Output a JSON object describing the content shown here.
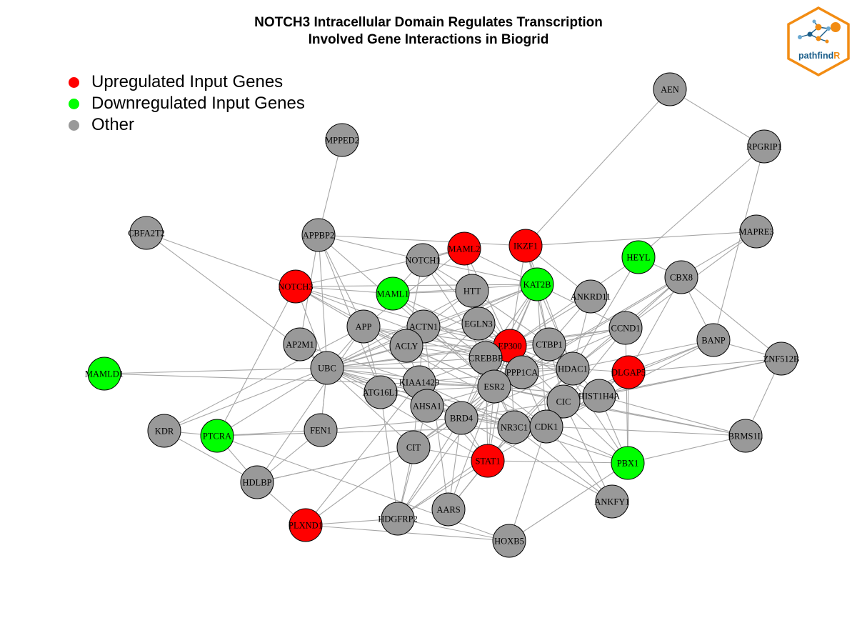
{
  "title": {
    "line1": "NOTCH3 Intracellular Domain Regulates Transcription",
    "line2": "Involved Gene Interactions in Biogrid"
  },
  "legend": [
    {
      "label": "Upregulated Input Genes",
      "color": "#ff0000"
    },
    {
      "label": "Downregulated Input Genes",
      "color": "#00ff00"
    },
    {
      "label": "Other",
      "color": "#999999"
    }
  ],
  "logo": {
    "text_main": "pathfind",
    "text_accent": "R",
    "accent_color": "#f28c13",
    "border_color": "#f28c13",
    "text_color": "#1b5e8a"
  },
  "colors": {
    "up": "#ff0000",
    "down": "#00ff00",
    "other": "#999999",
    "edge": "#a6a6a6"
  },
  "nodes": [
    {
      "id": "AEN",
      "status": "other"
    },
    {
      "id": "RPGRIP1",
      "status": "other"
    },
    {
      "id": "MPPED2",
      "status": "other"
    },
    {
      "id": "CBFA2T2",
      "status": "other"
    },
    {
      "id": "APPBP2",
      "status": "other"
    },
    {
      "id": "MAML2",
      "status": "up"
    },
    {
      "id": "IKZF1",
      "status": "up"
    },
    {
      "id": "HEYL",
      "status": "down"
    },
    {
      "id": "MAPRE3",
      "status": "other"
    },
    {
      "id": "NOTCH1",
      "status": "other"
    },
    {
      "id": "CBX8",
      "status": "other"
    },
    {
      "id": "NOTCH3",
      "status": "up"
    },
    {
      "id": "MAML1",
      "status": "down"
    },
    {
      "id": "HTT",
      "status": "other"
    },
    {
      "id": "KAT2B",
      "status": "down"
    },
    {
      "id": "ANKRD11",
      "status": "other"
    },
    {
      "id": "APP",
      "status": "other"
    },
    {
      "id": "ACTN1",
      "status": "other"
    },
    {
      "id": "EGLN3",
      "status": "other"
    },
    {
      "id": "CCND1",
      "status": "other"
    },
    {
      "id": "AP2M1",
      "status": "other"
    },
    {
      "id": "ACLY",
      "status": "other"
    },
    {
      "id": "EP300",
      "status": "up"
    },
    {
      "id": "CTBP1",
      "status": "other"
    },
    {
      "id": "BANP",
      "status": "other"
    },
    {
      "id": "UBC",
      "status": "other"
    },
    {
      "id": "CREBBP",
      "status": "other"
    },
    {
      "id": "HDAC1",
      "status": "other"
    },
    {
      "id": "DLGAP5",
      "status": "up"
    },
    {
      "id": "ZNF512B",
      "status": "other"
    },
    {
      "id": "MAMLD1",
      "status": "down"
    },
    {
      "id": "PPP1CA",
      "status": "other"
    },
    {
      "id": "KIAA1429",
      "status": "other"
    },
    {
      "id": "ATG16L1",
      "status": "other"
    },
    {
      "id": "ESR2",
      "status": "other"
    },
    {
      "id": "HIST1H4A",
      "status": "other"
    },
    {
      "id": "CIC",
      "status": "other"
    },
    {
      "id": "AHSA1",
      "status": "other"
    },
    {
      "id": "KDR",
      "status": "other"
    },
    {
      "id": "PTCRA",
      "status": "down"
    },
    {
      "id": "FEN1",
      "status": "other"
    },
    {
      "id": "BRD4",
      "status": "other"
    },
    {
      "id": "NR3C1",
      "status": "other"
    },
    {
      "id": "CDK1",
      "status": "other"
    },
    {
      "id": "BRMS1L",
      "status": "other"
    },
    {
      "id": "CIT",
      "status": "other"
    },
    {
      "id": "STAT1",
      "status": "up"
    },
    {
      "id": "PBX1",
      "status": "down"
    },
    {
      "id": "HDLBP",
      "status": "other"
    },
    {
      "id": "ANKFY1",
      "status": "other"
    },
    {
      "id": "AARS",
      "status": "other"
    },
    {
      "id": "PLXND1",
      "status": "up"
    },
    {
      "id": "HDGFRP2",
      "status": "other"
    },
    {
      "id": "HOXB5",
      "status": "other"
    }
  ],
  "edges": [
    [
      "AEN",
      "RPGRIP1"
    ],
    [
      "AEN",
      "IKZF1"
    ],
    [
      "RPGRIP1",
      "HEYL"
    ],
    [
      "RPGRIP1",
      "BANP"
    ],
    [
      "MPPED2",
      "APPBP2"
    ],
    [
      "CBFA2T2",
      "NOTCH3"
    ],
    [
      "CBFA2T2",
      "UBC"
    ],
    [
      "APPBP2",
      "IKZF1"
    ],
    [
      "APPBP2",
      "APP"
    ],
    [
      "APPBP2",
      "AP2M1"
    ],
    [
      "APPBP2",
      "UBC"
    ],
    [
      "APPBP2",
      "ACTN1"
    ],
    [
      "APPBP2",
      "ATG16L1"
    ],
    [
      "APPBP2",
      "NOTCH1"
    ],
    [
      "IKZF1",
      "MAPRE3"
    ],
    [
      "IKZF1",
      "KAT2B"
    ],
    [
      "IKZF1",
      "CTBP1"
    ],
    [
      "IKZF1",
      "HDAC1"
    ],
    [
      "IKZF1",
      "EP300"
    ],
    [
      "IKZF1",
      "ANKRD11"
    ],
    [
      "MAML2",
      "NOTCH1"
    ],
    [
      "MAML2",
      "NOTCH3"
    ],
    [
      "MAML2",
      "EP300"
    ],
    [
      "MAML2",
      "KAT2B"
    ],
    [
      "MAML2",
      "CREBBP"
    ],
    [
      "MAML2",
      "APP"
    ],
    [
      "NOTCH1",
      "MAML1"
    ],
    [
      "NOTCH1",
      "EP300"
    ],
    [
      "NOTCH1",
      "CREBBP"
    ],
    [
      "NOTCH1",
      "HTT"
    ],
    [
      "NOTCH1",
      "KAT2B"
    ],
    [
      "NOTCH1",
      "ACLY"
    ],
    [
      "NOTCH1",
      "MAML2"
    ],
    [
      "NOTCH3",
      "MAML1"
    ],
    [
      "NOTCH3",
      "EP300"
    ],
    [
      "NOTCH3",
      "APP"
    ],
    [
      "NOTCH3",
      "UBC"
    ],
    [
      "NOTCH3",
      "KAT2B"
    ],
    [
      "NOTCH3",
      "CREBBP"
    ],
    [
      "NOTCH3",
      "ACLY"
    ],
    [
      "MAML1",
      "EP300"
    ],
    [
      "MAML1",
      "KAT2B"
    ],
    [
      "MAML1",
      "CREBBP"
    ],
    [
      "MAML1",
      "HTT"
    ],
    [
      "MAML1",
      "ESR2"
    ],
    [
      "HEYL",
      "CBX8"
    ],
    [
      "HEYL",
      "HDAC1"
    ],
    [
      "HEYL",
      "EP300"
    ],
    [
      "CBX8",
      "BANP"
    ],
    [
      "CBX8",
      "ZNF512B"
    ],
    [
      "CBX8",
      "CCND1"
    ],
    [
      "CBX8",
      "HDAC1"
    ],
    [
      "CBX8",
      "DLGAP5"
    ],
    [
      "CBX8",
      "PPP1CA"
    ],
    [
      "MAPRE3",
      "CCND1"
    ],
    [
      "MAPRE3",
      "ESR2"
    ],
    [
      "KAT2B",
      "EP300"
    ],
    [
      "KAT2B",
      "CREBBP"
    ],
    [
      "KAT2B",
      "HDAC1"
    ],
    [
      "KAT2B",
      "CTBP1"
    ],
    [
      "KAT2B",
      "CCND1"
    ],
    [
      "KAT2B",
      "ESR2"
    ],
    [
      "KAT2B",
      "ACTN1"
    ],
    [
      "KAT2B",
      "ACLY"
    ],
    [
      "KAT2B",
      "UBC"
    ],
    [
      "KAT2B",
      "CDK1"
    ],
    [
      "KAT2B",
      "BRD4"
    ],
    [
      "ANKRD11",
      "HDAC1"
    ],
    [
      "ANKRD11",
      "EP300"
    ],
    [
      "ANKRD11",
      "CTBP1"
    ],
    [
      "HTT",
      "EP300"
    ],
    [
      "HTT",
      "CREBBP"
    ],
    [
      "HTT",
      "ACTN1"
    ],
    [
      "HTT",
      "UBC"
    ],
    [
      "HTT",
      "CTBP1"
    ],
    [
      "HTT",
      "ESR2"
    ],
    [
      "APP",
      "UBC"
    ],
    [
      "APP",
      "ACLY"
    ],
    [
      "APP",
      "KIAA1429"
    ],
    [
      "APP",
      "ATG16L1"
    ],
    [
      "APP",
      "EP300"
    ],
    [
      "APP",
      "CREBBP"
    ],
    [
      "APP",
      "ESR2"
    ],
    [
      "APP",
      "HDAC1"
    ],
    [
      "APP",
      "CDK1"
    ],
    [
      "ACTN1",
      "UBC"
    ],
    [
      "ACTN1",
      "ESR2"
    ],
    [
      "ACTN1",
      "EP300"
    ],
    [
      "ACTN1",
      "KIAA1429"
    ],
    [
      "ACTN1",
      "CTBP1"
    ],
    [
      "EGLN3",
      "EP300"
    ],
    [
      "EGLN3",
      "UBC"
    ],
    [
      "EGLN3",
      "KIAA1429"
    ],
    [
      "CCND1",
      "HDAC1"
    ],
    [
      "CCND1",
      "EP300"
    ],
    [
      "CCND1",
      "ESR2"
    ],
    [
      "CCND1",
      "CDK1"
    ],
    [
      "CCND1",
      "CREBBP"
    ],
    [
      "CCND1",
      "UBC"
    ],
    [
      "CCND1",
      "PBX1"
    ],
    [
      "AP2M1",
      "UBC"
    ],
    [
      "AP2M1",
      "KIAA1429"
    ],
    [
      "ACLY",
      "UBC"
    ],
    [
      "ACLY",
      "EP300"
    ],
    [
      "ACLY",
      "KIAA1429"
    ],
    [
      "ACLY",
      "ESR2"
    ],
    [
      "ACLY",
      "CREBBP"
    ],
    [
      "EP300",
      "CREBBP"
    ],
    [
      "EP300",
      "HDAC1"
    ],
    [
      "EP300",
      "CTBP1"
    ],
    [
      "EP300",
      "ESR2"
    ],
    [
      "EP300",
      "STAT1"
    ],
    [
      "EP300",
      "NR3C1"
    ],
    [
      "EP300",
      "BRD4"
    ],
    [
      "EP300",
      "CIC"
    ],
    [
      "EP300",
      "PPP1CA"
    ],
    [
      "EP300",
      "HIST1H4A"
    ],
    [
      "EP300",
      "UBC"
    ],
    [
      "CTBP1",
      "HDAC1"
    ],
    [
      "CTBP1",
      "CREBBP"
    ],
    [
      "CTBP1",
      "ESR2"
    ],
    [
      "CTBP1",
      "PBX1"
    ],
    [
      "CTBP1",
      "CIC"
    ],
    [
      "BANP",
      "HDAC1"
    ],
    [
      "BANP",
      "CDK1"
    ],
    [
      "BANP",
      "ZNF512B"
    ],
    [
      "BANP",
      "CIC"
    ],
    [
      "UBC",
      "CREBBP"
    ],
    [
      "UBC",
      "KIAA1429"
    ],
    [
      "UBC",
      "ESR2"
    ],
    [
      "UBC",
      "HDAC1"
    ],
    [
      "UBC",
      "BRD4"
    ],
    [
      "UBC",
      "AHSA1"
    ],
    [
      "UBC",
      "NR3C1"
    ],
    [
      "UBC",
      "CIT"
    ],
    [
      "UBC",
      "PTCRA"
    ],
    [
      "UBC",
      "KDR"
    ],
    [
      "UBC",
      "FEN1"
    ],
    [
      "UBC",
      "CDK1"
    ],
    [
      "UBC",
      "STAT1"
    ],
    [
      "CREBBP",
      "HDAC1"
    ],
    [
      "CREBBP",
      "ESR2"
    ],
    [
      "CREBBP",
      "STAT1"
    ],
    [
      "CREBBP",
      "NR3C1"
    ],
    [
      "CREBBP",
      "BRD4"
    ],
    [
      "CREBBP",
      "KIAA1429"
    ],
    [
      "CREBBP",
      "PPP1CA"
    ],
    [
      "CREBBP",
      "CIC"
    ],
    [
      "HDAC1",
      "ESR2"
    ],
    [
      "HDAC1",
      "NR3C1"
    ],
    [
      "HDAC1",
      "HIST1H4A"
    ],
    [
      "HDAC1",
      "DLGAP5"
    ],
    [
      "HDAC1",
      "CIC"
    ],
    [
      "HDAC1",
      "BRD4"
    ],
    [
      "HDAC1",
      "STAT1"
    ],
    [
      "DLGAP5",
      "ZNF512B"
    ],
    [
      "DLGAP5",
      "CDK1"
    ],
    [
      "DLGAP5",
      "BANP"
    ],
    [
      "DLGAP5",
      "CIC"
    ],
    [
      "DLGAP5",
      "PBX1"
    ],
    [
      "ZNF512B",
      "BRMS1L"
    ],
    [
      "ZNF512B",
      "CIC"
    ],
    [
      "ZNF512B",
      "HIST1H4A"
    ],
    [
      "MAMLD1",
      "ESR2"
    ],
    [
      "MAMLD1",
      "UBC"
    ],
    [
      "PPP1CA",
      "ESR2"
    ],
    [
      "PPP1CA",
      "BRD4"
    ],
    [
      "PPP1CA",
      "CDK1"
    ],
    [
      "PPP1CA",
      "HDAC1"
    ],
    [
      "PPP1CA",
      "KIAA1429"
    ],
    [
      "KIAA1429",
      "ESR2"
    ],
    [
      "KIAA1429",
      "BRD4"
    ],
    [
      "KIAA1429",
      "AHSA1"
    ],
    [
      "KIAA1429",
      "CIT"
    ],
    [
      "KIAA1429",
      "NR3C1"
    ],
    [
      "KIAA1429",
      "ATG16L1"
    ],
    [
      "KIAA1429",
      "PLXND1"
    ],
    [
      "KIAA1429",
      "STAT1"
    ],
    [
      "ATG16L1",
      "ESR2"
    ],
    [
      "ATG16L1",
      "UBC"
    ],
    [
      "ATG16L1",
      "HDGFRP2"
    ],
    [
      "ESR2",
      "NR3C1"
    ],
    [
      "ESR2",
      "BRD4"
    ],
    [
      "ESR2",
      "CDK1"
    ],
    [
      "ESR2",
      "STAT1"
    ],
    [
      "ESR2",
      "CIC"
    ],
    [
      "ESR2",
      "HIST1H4A"
    ],
    [
      "ESR2",
      "AHSA1"
    ],
    [
      "ESR2",
      "CIT"
    ],
    [
      "ESR2",
      "HDGFRP2"
    ],
    [
      "ESR2",
      "BRMS1L"
    ],
    [
      "ESR2",
      "AARS"
    ],
    [
      "HIST1H4A",
      "CIC"
    ],
    [
      "HIST1H4A",
      "BRMS1L"
    ],
    [
      "HIST1H4A",
      "CDK1"
    ],
    [
      "HIST1H4A",
      "PBX1"
    ],
    [
      "CIC",
      "CDK1"
    ],
    [
      "CIC",
      "NR3C1"
    ],
    [
      "CIC",
      "BRMS1L"
    ],
    [
      "CIC",
      "BRD4"
    ],
    [
      "CIC",
      "ANKFY1"
    ],
    [
      "CIC",
      "PBX1"
    ],
    [
      "AHSA1",
      "BRD4"
    ],
    [
      "AHSA1",
      "CDK1"
    ],
    [
      "AHSA1",
      "NR3C1"
    ],
    [
      "AHSA1",
      "HDGFRP2"
    ],
    [
      "KDR",
      "PTCRA"
    ],
    [
      "KDR",
      "HDLBP"
    ],
    [
      "KDR",
      "APP"
    ],
    [
      "PTCRA",
      "FEN1"
    ],
    [
      "PTCRA",
      "HDLBP"
    ],
    [
      "PTCRA",
      "NOTCH3"
    ],
    [
      "PTCRA",
      "CDK1"
    ],
    [
      "PTCRA",
      "HOXB5"
    ],
    [
      "FEN1",
      "BRD4"
    ],
    [
      "FEN1",
      "UBC"
    ],
    [
      "FEN1",
      "HDLBP"
    ],
    [
      "BRD4",
      "NR3C1"
    ],
    [
      "BRD4",
      "CDK1"
    ],
    [
      "BRD4",
      "STAT1"
    ],
    [
      "BRD4",
      "CIT"
    ],
    [
      "BRD4",
      "AARS"
    ],
    [
      "BRD4",
      "HDGFRP2"
    ],
    [
      "BRD4",
      "ANKFY1"
    ],
    [
      "NR3C1",
      "CDK1"
    ],
    [
      "NR3C1",
      "STAT1"
    ],
    [
      "NR3C1",
      "AARS"
    ],
    [
      "NR3C1",
      "ANKFY1"
    ],
    [
      "NR3C1",
      "PBX1"
    ],
    [
      "CDK1",
      "BRMS1L"
    ],
    [
      "CDK1",
      "HOXB5"
    ],
    [
      "CDK1",
      "PBX1"
    ],
    [
      "CDK1",
      "STAT1"
    ],
    [
      "BRMS1L",
      "PBX1"
    ],
    [
      "CIT",
      "HDLBP"
    ],
    [
      "CIT",
      "STAT1"
    ],
    [
      "CIT",
      "HDGFRP2"
    ],
    [
      "STAT1",
      "AARS"
    ],
    [
      "STAT1",
      "PBX1"
    ],
    [
      "STAT1",
      "HDGFRP2"
    ],
    [
      "PBX1",
      "HOXB5"
    ],
    [
      "HDLBP",
      "CIT"
    ],
    [
      "HDLBP",
      "PLXND1"
    ],
    [
      "HDLBP",
      "APP"
    ],
    [
      "ANKFY1",
      "CDK1"
    ],
    [
      "PLXND1",
      "HOXB5"
    ],
    [
      "PLXND1",
      "HDGFRP2"
    ],
    [
      "PLXND1",
      "ESR2"
    ],
    [
      "HDGFRP2",
      "HOXB5"
    ],
    [
      "HDGFRP2",
      "CIC"
    ],
    [
      "AARS",
      "ACTN1"
    ]
  ]
}
